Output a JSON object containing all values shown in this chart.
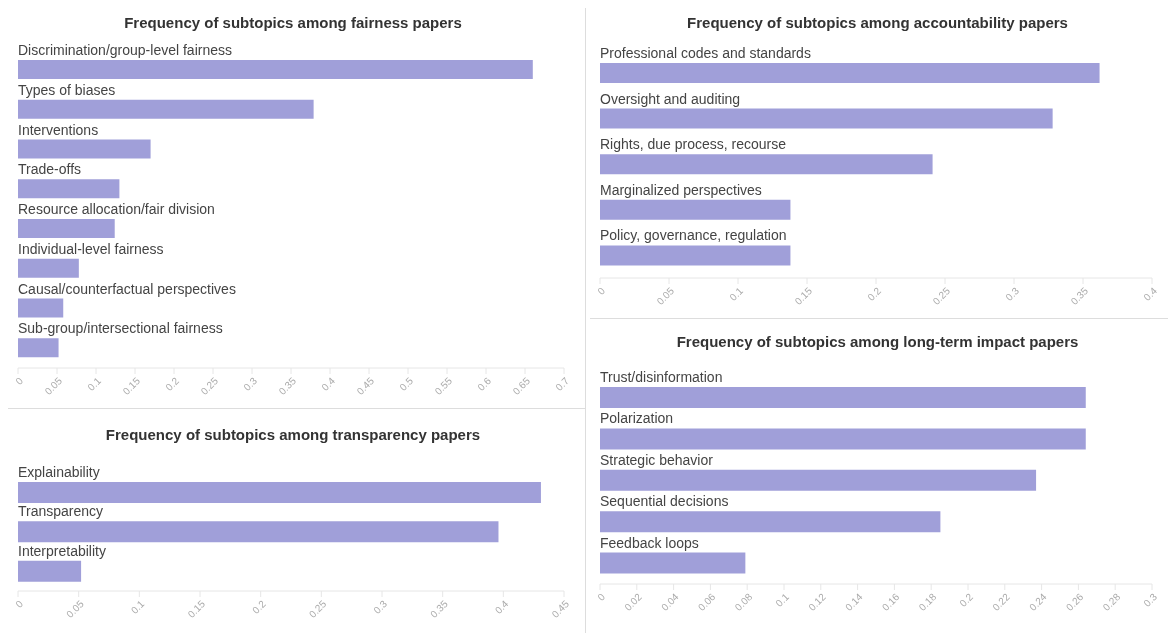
{
  "chart_data": [
    {
      "type": "bar",
      "orientation": "horizontal",
      "title": "Frequency of subtopics among fairness papers",
      "categories": [
        "Discrimination/group-level fairness",
        "Types of biases",
        "Interventions",
        "Trade-offs",
        "Resource allocation/fair division",
        "Individual-level fairness",
        "Causal/counterfactual perspectives",
        "Sub-group/intersectional fairness"
      ],
      "values": [
        0.66,
        0.379,
        0.17,
        0.13,
        0.124,
        0.078,
        0.058,
        0.052
      ],
      "color": "#a09fd9",
      "xlim": [
        0,
        0.7
      ],
      "xticks": [
        0,
        0.05,
        0.1,
        0.15,
        0.2,
        0.25,
        0.3,
        0.35,
        0.4,
        0.45,
        0.5,
        0.55,
        0.6,
        0.65,
        0.7
      ]
    },
    {
      "type": "bar",
      "orientation": "horizontal",
      "title": "Frequency of subtopics among accountability papers",
      "categories": [
        "Professional codes and standards",
        "Oversight and auditing",
        "Rights, due process, recourse",
        "Marginalized perspectives",
        "Policy, governance, regulation"
      ],
      "values": [
        0.362,
        0.328,
        0.241,
        0.138,
        0.138
      ],
      "color": "#a09fd9",
      "xlim": [
        0,
        0.4
      ],
      "xticks": [
        0,
        0.05,
        0.1,
        0.15,
        0.2,
        0.25,
        0.3,
        0.35,
        0.4
      ]
    },
    {
      "type": "bar",
      "orientation": "horizontal",
      "title": "Frequency of subtopics among transparency papers",
      "categories": [
        "Explainability",
        "Transparency",
        "Interpretability"
      ],
      "values": [
        0.431,
        0.396,
        0.052
      ],
      "color": "#a09fd9",
      "xlim": [
        0,
        0.45
      ],
      "xticks": [
        0,
        0.05,
        0.1,
        0.15,
        0.2,
        0.25,
        0.3,
        0.35,
        0.4,
        0.45
      ]
    },
    {
      "type": "bar",
      "orientation": "horizontal",
      "title": "Frequency of subtopics among long-term impact papers",
      "categories": [
        "Trust/disinformation",
        "Polarization",
        "Strategic behavior",
        "Sequential decisions",
        "Feedback loops"
      ],
      "values": [
        0.264,
        0.264,
        0.237,
        0.185,
        0.079
      ],
      "color": "#a09fd9",
      "xlim": [
        0,
        0.3
      ],
      "xticks": [
        0,
        0.02,
        0.04,
        0.06,
        0.08,
        0.1,
        0.12,
        0.14,
        0.16,
        0.18,
        0.2,
        0.22,
        0.24,
        0.26,
        0.28,
        0.3
      ]
    }
  ]
}
